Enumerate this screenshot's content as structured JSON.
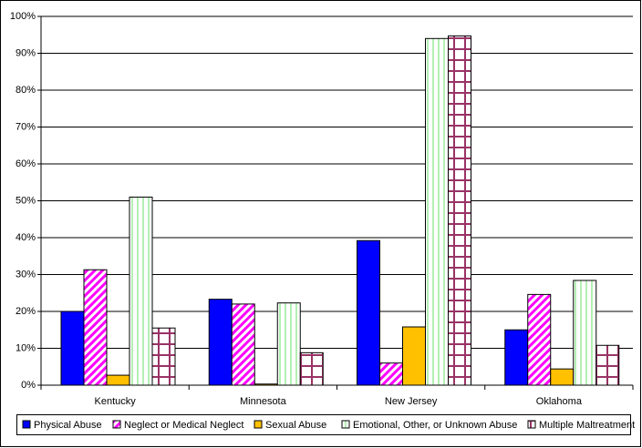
{
  "chart_data": {
    "type": "bar",
    "categories": [
      "Kentucky",
      "Minnesota",
      "New Jersey",
      "Oklahoma"
    ],
    "series": [
      {
        "name": "Physical Abuse",
        "color": "#0000ff",
        "pattern": "solid",
        "values": [
          20,
          23.3,
          39.2,
          15
        ]
      },
      {
        "name": "Neglect or Medical Neglect",
        "color": "#ff00ff",
        "pattern": "diagonal",
        "values": [
          31.3,
          22,
          6,
          24.6
        ]
      },
      {
        "name": "Sexual Abuse",
        "color": "#ffc000",
        "pattern": "solid",
        "values": [
          2.7,
          0.3,
          15.8,
          4.4
        ]
      },
      {
        "name": "Emotional, Other, or Unknown Abuse",
        "color": "#b4f0b4",
        "pattern": "vertical",
        "values": [
          51,
          22.3,
          94,
          28.4
        ]
      },
      {
        "name": "Multiple Maltreatment",
        "color": "#993366",
        "pattern": "grid",
        "values": [
          15.5,
          8.8,
          94.7,
          10.8
        ]
      }
    ],
    "ylim": [
      0,
      100
    ],
    "yticks": [
      {
        "value": 0,
        "label": "0%"
      },
      {
        "value": 10,
        "label": "10%"
      },
      {
        "value": 20,
        "label": "20%"
      },
      {
        "value": 30,
        "label": "30%"
      },
      {
        "value": 40,
        "label": "40%"
      },
      {
        "value": 50,
        "label": "50%"
      },
      {
        "value": 60,
        "label": "60%"
      },
      {
        "value": 70,
        "label": "70%"
      },
      {
        "value": 80,
        "label": "80%"
      },
      {
        "value": 90,
        "label": "90%"
      },
      {
        "value": 100,
        "label": "100%"
      }
    ],
    "grid": true,
    "legend": "bottom"
  }
}
